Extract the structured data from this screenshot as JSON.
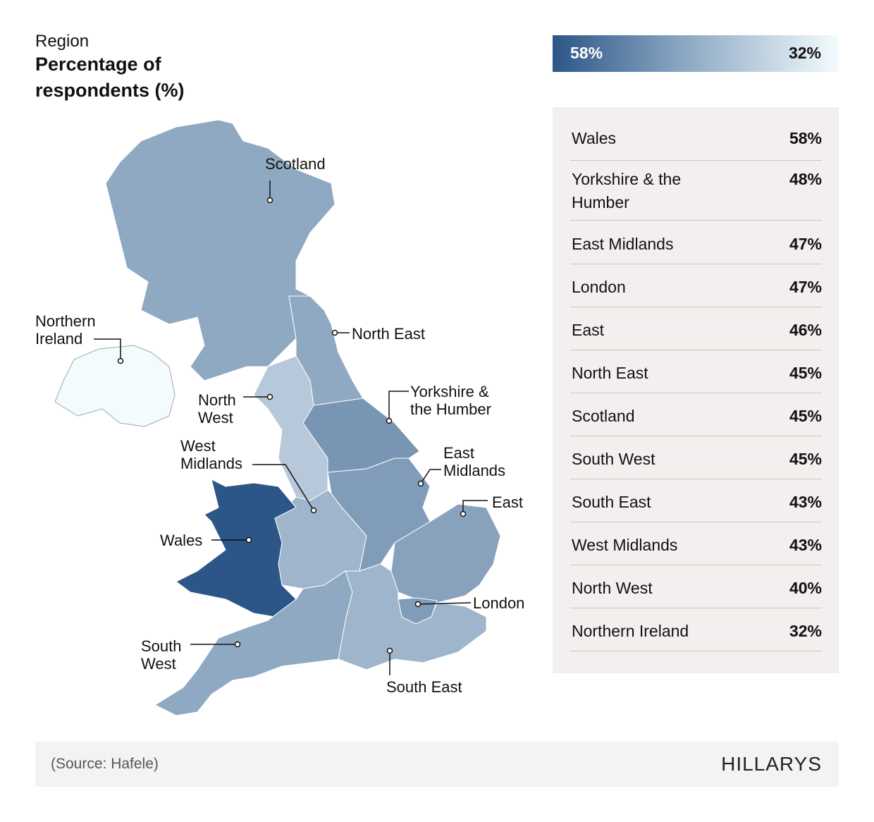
{
  "title": {
    "subtitle": "Region",
    "main": "Percentage of respondents (%)"
  },
  "legend": {
    "max_label": "58%",
    "min_label": "32%",
    "max_value": 58,
    "min_value": 32,
    "max_color": "#2c5687",
    "min_color": "#f3fbfd"
  },
  "regions": [
    {
      "id": "wales",
      "name": "Wales",
      "value": 58,
      "value_label": "58%"
    },
    {
      "id": "yorkshire",
      "name": "Yorkshire & the Humber",
      "value": 48,
      "value_label": "48%"
    },
    {
      "id": "east-midlands",
      "name": "East Midlands",
      "value": 47,
      "value_label": "47%"
    },
    {
      "id": "london",
      "name": "London",
      "value": 47,
      "value_label": "47%"
    },
    {
      "id": "east",
      "name": "East",
      "value": 46,
      "value_label": "46%"
    },
    {
      "id": "north-east",
      "name": "North East",
      "value": 45,
      "value_label": "45%"
    },
    {
      "id": "scotland",
      "name": "Scotland",
      "value": 45,
      "value_label": "45%"
    },
    {
      "id": "south-west",
      "name": "South West",
      "value": 45,
      "value_label": "45%"
    },
    {
      "id": "south-east",
      "name": "South East",
      "value": 43,
      "value_label": "43%"
    },
    {
      "id": "west-midlands",
      "name": "West Midlands",
      "value": 43,
      "value_label": "43%"
    },
    {
      "id": "north-west",
      "name": "North West",
      "value": 40,
      "value_label": "40%"
    },
    {
      "id": "northern-ireland",
      "name": "Northern Ireland",
      "value": 32,
      "value_label": "32%"
    }
  ],
  "map_labels": {
    "scotland": "Scotland",
    "northern_ireland": [
      "Northern",
      "Ireland"
    ],
    "north_east": "North East",
    "north_west": [
      "North",
      "West"
    ],
    "yorkshire": [
      "Yorkshire &",
      "the Humber"
    ],
    "west_midlands": [
      "West",
      "Midlands"
    ],
    "east_midlands": [
      "East",
      "Midlands"
    ],
    "east": "East",
    "wales": "Wales",
    "london": "London",
    "south_west": [
      "South",
      "West"
    ],
    "south_east": "South East"
  },
  "footer": {
    "source": "(Source: Hafele)",
    "logo": "HILLARYS"
  }
}
